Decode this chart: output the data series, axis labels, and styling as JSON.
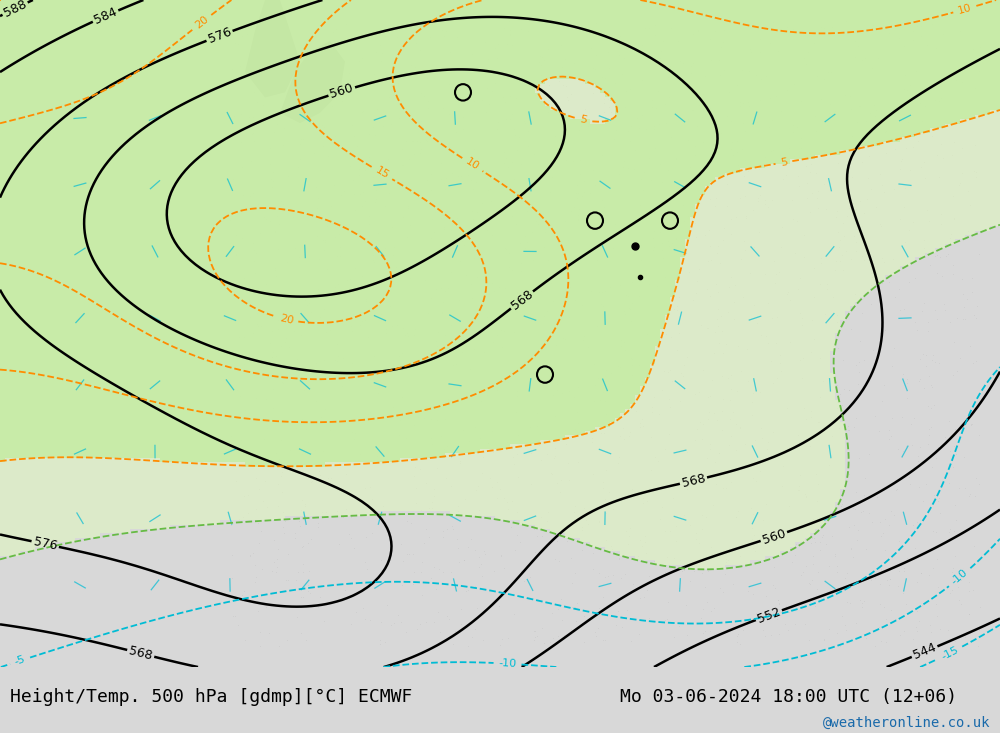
{
  "title_left": "Height/Temp. 500 hPa [gdmp][°C] ECMWF",
  "title_right": "Mo 03-06-2024 18:00 UTC (12+06)",
  "watermark": "@weatheronline.co.uk",
  "bg_color": "#d8d8d8",
  "map_bg": "#e8e8e8",
  "land_color": "#d0d0d0",
  "green_fill": "#c8f0a0",
  "figure_size": [
    10.0,
    7.33
  ],
  "dpi": 100,
  "bottom_bar_color": "#f0f0f0",
  "title_font_size": 13,
  "watermark_color": "#1a6aaa"
}
